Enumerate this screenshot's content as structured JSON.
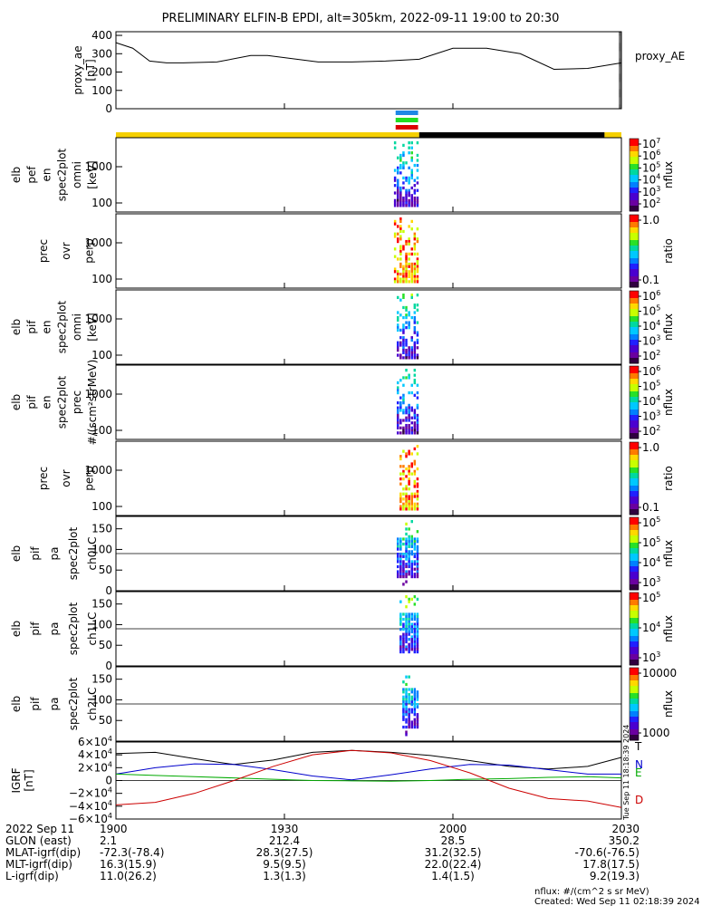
{
  "title": "PRELIMINARY ELFIN-B EPDI, alt=305km, 2022-09-11 19:00 to 20:30",
  "chart_data": [
    {
      "type": "line",
      "name": "proxy_ae",
      "ylabel": "proxy_ae [nT]",
      "ytick_labels": [
        "400",
        "300",
        "200",
        "100",
        "0"
      ],
      "ylim": [
        0,
        420
      ],
      "x_minutes": [
        0,
        3,
        6,
        9,
        12,
        18,
        24,
        27,
        36,
        42,
        48,
        54,
        60,
        66,
        72,
        78,
        84,
        90
      ],
      "y": [
        360,
        330,
        260,
        250,
        250,
        255,
        290,
        290,
        255,
        255,
        260,
        270,
        330,
        330,
        300,
        215,
        220,
        250
      ],
      "legend": "proxy_AE"
    },
    {
      "type": "heatmap",
      "name": "elb pef en spec2plot omni",
      "ylabel_lines": [
        "elb",
        "pef",
        "en",
        "spec2plot",
        "omni",
        "[keV]"
      ],
      "ytick_labels": [
        "1000",
        "100"
      ],
      "colorbar": {
        "title": "nflux",
        "labels": [
          "10^7",
          "10^6",
          "10^5",
          "10^4",
          "10^3",
          "10^2"
        ]
      },
      "active_interval_minutes": [
        49.5,
        54
      ]
    },
    {
      "type": "heatmap",
      "name": "prec ovr perp",
      "ylabel_lines": [
        "prec",
        "ovr",
        "perp"
      ],
      "ytick_labels": [
        "1000",
        "100"
      ],
      "colorbar": {
        "title": "ratio",
        "labels": [
          "1.0",
          "0.1"
        ]
      },
      "active_interval_minutes": [
        49.5,
        54
      ]
    },
    {
      "type": "heatmap",
      "name": "elb pif en spec2plot omni",
      "ylabel_lines": [
        "elb",
        "pif",
        "en",
        "spec2plot",
        "omni",
        "[keV]"
      ],
      "ytick_labels": [
        "1000",
        "100"
      ],
      "colorbar": {
        "title": "nflux",
        "labels": [
          "10^6",
          "10^5",
          "10^4",
          "10^3",
          "10^2"
        ]
      },
      "active_interval_minutes": [
        50,
        54
      ]
    },
    {
      "type": "heatmap",
      "name": "elb pif en spec2plot prec",
      "ylabel_lines": [
        "elb",
        "pif",
        "en",
        "spec2plot",
        "prec",
        "#/(scm²strMeV)"
      ],
      "ytick_labels": [
        "1000",
        "100"
      ],
      "colorbar": {
        "title": "nflux",
        "labels": [
          "10^6",
          "10^5",
          "10^4",
          "10^3",
          "10^2"
        ]
      },
      "active_interval_minutes": [
        50,
        54
      ]
    },
    {
      "type": "heatmap",
      "name": "prec ovr perp",
      "ylabel_lines": [
        "prec",
        "ovr",
        "perp"
      ],
      "ytick_labels": [
        "1000",
        "100"
      ],
      "colorbar": {
        "title": "ratio",
        "labels": [
          "1.0",
          "0.1"
        ]
      },
      "active_interval_minutes": [
        50.5,
        54
      ]
    },
    {
      "type": "heatmap",
      "name": "elb pif pa spec2plot ch0LC",
      "ylabel_lines": [
        "elb",
        "pif",
        "pa",
        "spec2plot",
        "ch0LC"
      ],
      "ytick_labels": [
        "150",
        "100",
        "50",
        "0"
      ],
      "ylim": [
        0,
        180
      ],
      "reference_lines": [
        90
      ],
      "colorbar": {
        "title": "nflux",
        "labels": [
          "10^5",
          "10^5",
          "10^4",
          "10^3"
        ]
      },
      "active_interval_minutes": [
        50,
        54
      ]
    },
    {
      "type": "heatmap",
      "name": "elb pif pa spec2plot ch1LC",
      "ylabel_lines": [
        "elb",
        "pif",
        "pa",
        "spec2plot",
        "ch1LC"
      ],
      "ytick_labels": [
        "150",
        "100",
        "50",
        "0"
      ],
      "ylim": [
        0,
        180
      ],
      "reference_lines": [
        90
      ],
      "colorbar": {
        "title": "nflux",
        "labels": [
          "10^5",
          "10^4",
          "10^3"
        ]
      },
      "active_interval_minutes": [
        50.5,
        54
      ]
    },
    {
      "type": "heatmap",
      "name": "elb pif pa spec2plot ch2LC",
      "ylabel_lines": [
        "elb",
        "pif",
        "pa",
        "spec2plot",
        "ch2LC"
      ],
      "ytick_labels": [
        "150",
        "100",
        "50"
      ],
      "ylim": [
        0,
        180
      ],
      "reference_lines": [
        90
      ],
      "colorbar": {
        "title": "nflux",
        "labels": [
          "10000",
          "1000"
        ]
      },
      "active_interval_minutes": [
        51,
        54
      ]
    },
    {
      "type": "line",
      "name": "IGRF",
      "ylabel": "IGRF [nT]",
      "ytick_labels": [
        "6×10^4",
        "4×10^4",
        "2×10^4",
        "0",
        "−2×10^4",
        "−4×10^4",
        "−6×10^4"
      ],
      "ylim": [
        -60000,
        60000
      ],
      "x_minutes": [
        0,
        7,
        14,
        21,
        28,
        35,
        42,
        49,
        56,
        63,
        70,
        77,
        84,
        90
      ],
      "series": [
        {
          "name": "T",
          "color": "#000000",
          "values": [
            42000,
            44000,
            34000,
            25000,
            32000,
            44000,
            47000,
            44000,
            39000,
            31000,
            22000,
            18000,
            22000,
            36000
          ]
        },
        {
          "name": "N",
          "color": "#0000cc",
          "values": [
            10000,
            20000,
            26000,
            25000,
            17000,
            7000,
            1000,
            9000,
            18000,
            25000,
            24000,
            17000,
            10000,
            10000
          ]
        },
        {
          "name": "E",
          "color": "#00aa00",
          "values": [
            10000,
            8000,
            6000,
            4000,
            2000,
            0,
            -500,
            -1000,
            0,
            2000,
            3000,
            5000,
            6000,
            4000
          ]
        },
        {
          "name": "D",
          "color": "#cc0000",
          "values": [
            -38000,
            -34000,
            -20000,
            0,
            22000,
            40000,
            47000,
            43000,
            31000,
            12000,
            -12000,
            -28000,
            -32000,
            -42000
          ]
        }
      ]
    }
  ],
  "time_bar": {
    "status_yellow_until_minutes": 54,
    "status_black_from_minutes": 54,
    "status_black_until_minutes": 87,
    "status_yellow_end_minutes": 90,
    "markers": [
      {
        "color": "#1e88e5",
        "from": 49.8,
        "to": 53.8
      },
      {
        "color": "#22dd22",
        "from": 49.8,
        "to": 53.8
      },
      {
        "color": "#dd0000",
        "from": 49.8,
        "to": 53.8
      }
    ]
  },
  "colormap": [
    "#ff0000",
    "#ff7a00",
    "#ffd800",
    "#c8ff00",
    "#28e028",
    "#00d8a0",
    "#00c8ff",
    "#0080ff",
    "#2020ff",
    "#4a00d0",
    "#6a00a0",
    "#300040"
  ],
  "x_axis": {
    "tick_labels": [
      "1900",
      "1930",
      "2000",
      "2030"
    ],
    "tick_minutes": [
      0,
      30,
      60,
      90
    ]
  },
  "ephemeris": {
    "row_labels": [
      "2022 Sep 11",
      "GLON (east)",
      "MLAT-igrf(dip)",
      "MLT-igrf(dip)",
      "L-igrf(dip)"
    ],
    "columns": [
      [
        "1900",
        "2.1",
        "-72.3(-78.4)",
        "16.3(15.9)",
        "11.0(26.2)"
      ],
      [
        "1930",
        "212.4",
        "28.3(27.5)",
        "9.5(9.5)",
        "1.3(1.3)"
      ],
      [
        "2000",
        "28.5",
        "31.2(32.5)",
        "22.0(22.4)",
        "1.4(1.5)"
      ],
      [
        "2030",
        "350.2",
        "-70.6(-76.5)",
        "17.8(17.5)",
        "9.2(19.3)"
      ]
    ]
  },
  "footer": {
    "line1": "nflux: #/(cm^2 s sr MeV)",
    "line2": "Created: Wed Sep 11 02:18:39 2024"
  },
  "side_stamp": "Tue Sep 11 18:18:39 2024"
}
